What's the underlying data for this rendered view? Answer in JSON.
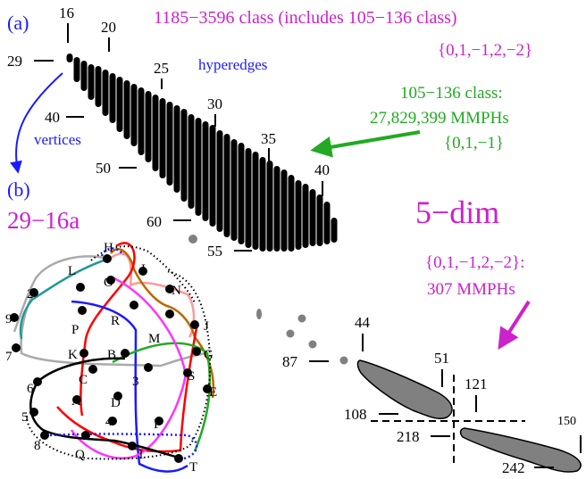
{
  "panel_a": {
    "label": "(a)",
    "title": "1185−3596 class (includes 105−136 class)",
    "title_set": "{0,1,−1,2,−2}",
    "hyperedges_label": "hyperedges",
    "vertices_label": "vertices",
    "class_105_136_line1": "105−136 class:",
    "class_105_136_line2": "27,829,399 MMPHs",
    "class_105_136_set": "{0,1,−1}",
    "column_ticks": [
      "16",
      "20",
      "25",
      "30",
      "35",
      "40"
    ],
    "row_ticks": [
      "29",
      "40",
      "50",
      "60",
      "55"
    ]
  },
  "panel_b": {
    "label": "(b)",
    "name": "29−16a",
    "vertices": [
      "H",
      "L",
      "I",
      "O",
      "N",
      "2",
      "9",
      "P",
      "R",
      "M",
      "J",
      "7",
      "K",
      "B",
      "G",
      "6",
      "C",
      "3",
      "S",
      "E",
      "A",
      "D",
      "5",
      "4",
      "F",
      "8",
      "Q",
      "1",
      "T"
    ]
  },
  "dimension_label": "5−dim",
  "mmph_set": "{0,1,−1,2,−2}:",
  "mmph_count": "307 MMPHs",
  "distribution_ticks": [
    "44",
    "51",
    "121",
    "87",
    "108",
    "218",
    "150",
    "242"
  ],
  "colors": {
    "magenta": "#cc22cc",
    "blue": "#1a1aff",
    "green": "#22aa22",
    "gray_blob": "#808080"
  }
}
